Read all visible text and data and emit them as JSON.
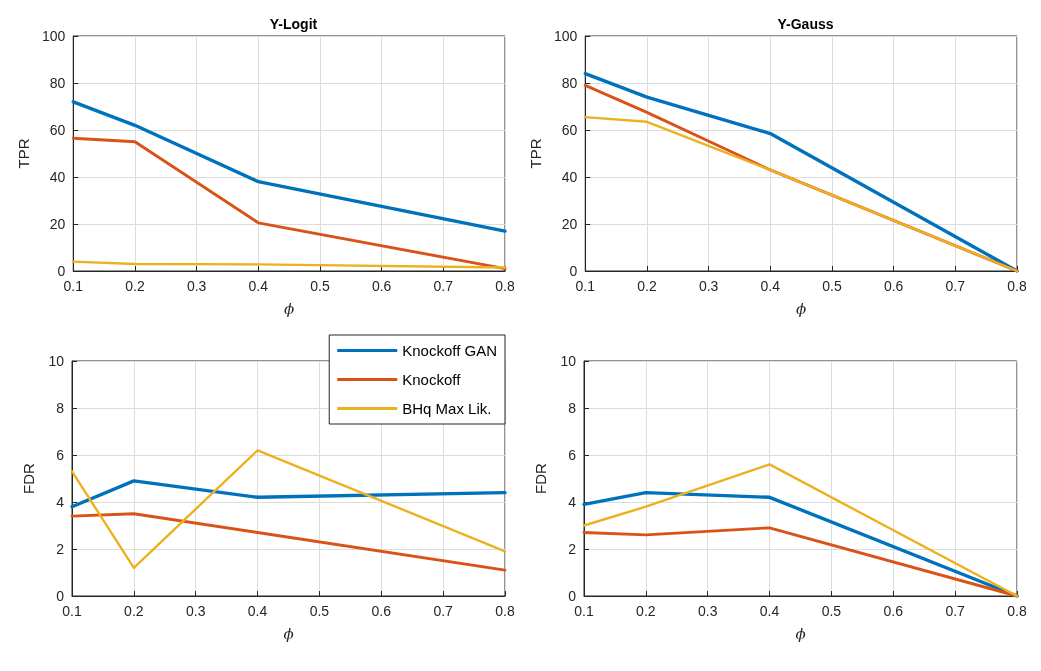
{
  "chart_data": [
    {
      "type": "line",
      "title": "Y-Logit",
      "xlabel": "ϕ",
      "ylabel": "TPR",
      "x": [
        0.1,
        0.2,
        0.4,
        0.8
      ],
      "xlim": [
        0.1,
        0.8
      ],
      "xticks": [
        0.1,
        0.2,
        0.3,
        0.4,
        0.5,
        0.6,
        0.7,
        0.8
      ],
      "ylim": [
        0,
        100
      ],
      "yticks": [
        0,
        20,
        40,
        60,
        80,
        100
      ],
      "grid": true,
      "legend": false,
      "line_style": "solid",
      "series": [
        {
          "color": "#0072bd",
          "values": [
            72,
            62,
            38,
            17
          ]
        },
        {
          "color": "#d95319",
          "values": [
            56.5,
            55,
            20.5,
            1
          ]
        },
        {
          "color": "#edb120",
          "values": [
            4,
            3,
            2.8,
            1.5
          ]
        }
      ]
    },
    {
      "type": "line",
      "title": "Y-Gauss",
      "xlabel": "ϕ",
      "ylabel": "TPR",
      "x": [
        0.1,
        0.2,
        0.4,
        0.8
      ],
      "xlim": [
        0.1,
        0.8
      ],
      "xticks": [
        0.1,
        0.2,
        0.3,
        0.4,
        0.5,
        0.6,
        0.7,
        0.8
      ],
      "ylim": [
        0,
        100
      ],
      "yticks": [
        0,
        20,
        40,
        60,
        80,
        100
      ],
      "grid": true,
      "legend": false,
      "line_style": "solid",
      "series": [
        {
          "color": "#0072bd",
          "values": [
            84,
            74,
            58.5,
            0
          ]
        },
        {
          "color": "#d95319",
          "values": [
            79,
            67.5,
            43,
            0
          ]
        },
        {
          "color": "#edb120",
          "values": [
            65.5,
            63.5,
            43,
            0
          ]
        }
      ]
    },
    {
      "type": "line",
      "xlabel": "ϕ",
      "ylabel": "FDR",
      "x": [
        0.1,
        0.2,
        0.4,
        0.8
      ],
      "xlim": [
        0.1,
        0.8
      ],
      "xticks": [
        0.1,
        0.2,
        0.3,
        0.4,
        0.5,
        0.6,
        0.7,
        0.8
      ],
      "ylim": [
        0,
        10
      ],
      "yticks": [
        0,
        2,
        4,
        6,
        8,
        10
      ],
      "grid": true,
      "legend": "top right",
      "line_style": "solid",
      "series": [
        {
          "name": "Knockoff GAN",
          "color": "#0072bd",
          "values": [
            3.8,
            4.9,
            4.2,
            4.4
          ]
        },
        {
          "name": "Knockoff",
          "color": "#d95319",
          "values": [
            3.4,
            3.5,
            2.7,
            1.1
          ]
        },
        {
          "name": "BHq Max Lik.",
          "color": "#edb120",
          "values": [
            5.3,
            1.2,
            6.2,
            1.9
          ]
        }
      ]
    },
    {
      "type": "line",
      "xlabel": "ϕ",
      "ylabel": "FDR",
      "x": [
        0.1,
        0.2,
        0.4,
        0.8
      ],
      "xlim": [
        0.1,
        0.8
      ],
      "xticks": [
        0.1,
        0.2,
        0.3,
        0.4,
        0.5,
        0.6,
        0.7,
        0.8
      ],
      "ylim": [
        0,
        10
      ],
      "yticks": [
        0,
        2,
        4,
        6,
        8,
        10
      ],
      "grid": true,
      "legend": false,
      "line_style": "solid",
      "series": [
        {
          "color": "#0072bd",
          "values": [
            3.9,
            4.4,
            4.2,
            0
          ]
        },
        {
          "color": "#d95319",
          "values": [
            2.7,
            2.6,
            2.9,
            0
          ]
        },
        {
          "color": "#edb120",
          "values": [
            3.0,
            3.8,
            5.6,
            0
          ]
        }
      ]
    }
  ]
}
